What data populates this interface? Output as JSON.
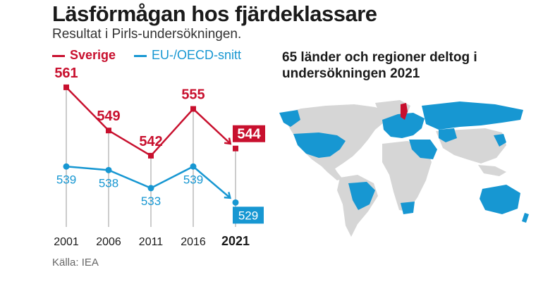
{
  "header": {
    "title": "Läsförmågan hos fjärdeklassare",
    "subtitle": "Resultat i Pirls-undersökningen."
  },
  "chart_data": {
    "type": "line",
    "title": "Läsförmågan hos fjärdeklassare",
    "subtitle": "Resultat i Pirls-undersökningen.",
    "x": [
      "2001",
      "2006",
      "2011",
      "2016",
      "2021"
    ],
    "series": [
      {
        "name": "Sverige",
        "color": "#c8102e",
        "values": [
          561,
          549,
          542,
          555,
          544
        ]
      },
      {
        "name": "EU-/OECD-snitt",
        "color": "#1797d2",
        "values": [
          539,
          538,
          533,
          539,
          529
        ]
      }
    ],
    "ylim": [
      525,
      565
    ],
    "legend": "top-left",
    "grid": false
  },
  "map": {
    "caption": "65 länder och regioner deltog i undersökningen 2021",
    "highlight_color": "#1797d2",
    "sweden_color": "#c8102e",
    "base_color": "#d6d6d6"
  },
  "footer": {
    "source": "Källa: IEA"
  }
}
